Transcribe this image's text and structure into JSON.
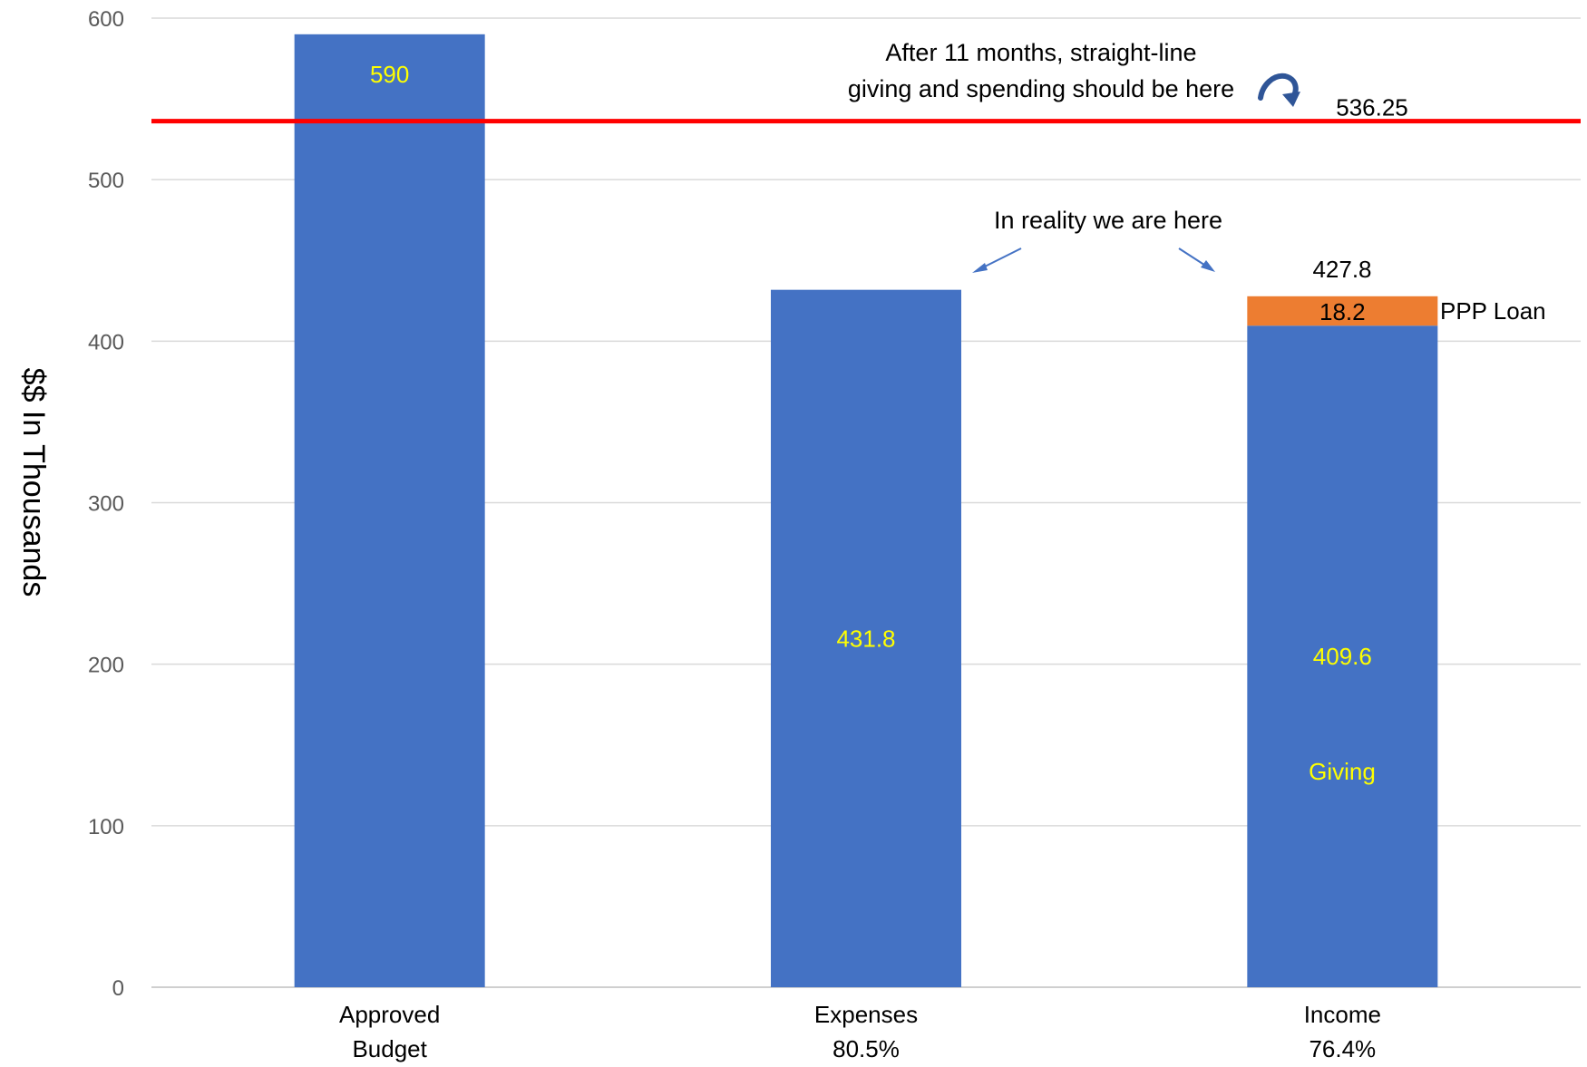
{
  "chart_data": {
    "type": "bar",
    "stacked": true,
    "categories": [
      [
        "Approved",
        "Budget"
      ],
      [
        "Expenses",
        "80.5%"
      ],
      [
        "Income",
        "76.4%"
      ]
    ],
    "series": [
      {
        "values": [
          590,
          431.8,
          409.6
        ],
        "color": "#4472c4",
        "labels": [
          "590",
          "431.8",
          "409.6"
        ]
      },
      {
        "values": [
          0,
          0,
          18.2
        ],
        "color": "#ed7d31",
        "labels": [
          "",
          "",
          "18.2"
        ]
      }
    ],
    "ylabel": "$$ In Thousands",
    "xlabel": "",
    "ylim": [
      0,
      600
    ],
    "yticks": [
      "0",
      "100",
      "200",
      "300",
      "400",
      "500",
      "600"
    ],
    "grid": true,
    "reference_line": {
      "value": 536.25,
      "label": "536.25",
      "color": "#ff0000"
    },
    "annotations": {
      "straight_line_note": [
        "After 11 months, straight-line",
        "giving and spending should be here"
      ],
      "reality_note": "In reality we are here",
      "income_total": "427.8",
      "ppp_label": "PPP Loan",
      "giving_label": "Giving"
    }
  }
}
